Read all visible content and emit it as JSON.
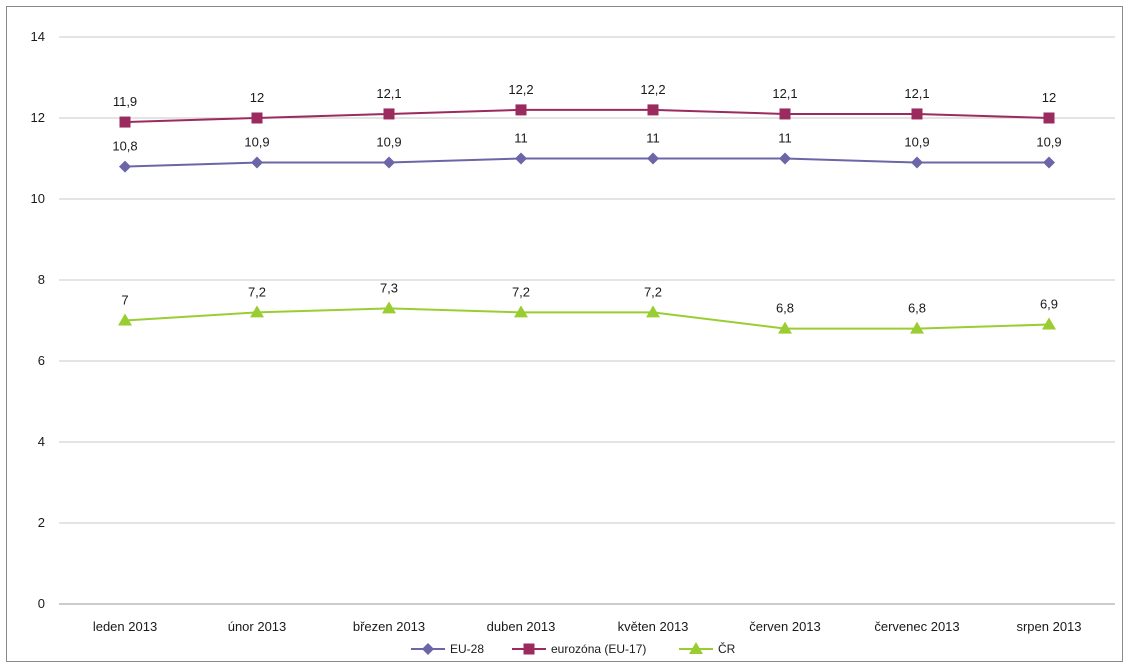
{
  "chart_data": {
    "type": "line",
    "categories": [
      "leden 2013",
      "únor 2013",
      "březen 2013",
      "duben 2013",
      "květen 2013",
      "červen 2013",
      "červenec 2013",
      "srpen 2013"
    ],
    "series": [
      {
        "name": "EU-28",
        "marker": "diamond",
        "color": "#6b66a8",
        "values": [
          10.8,
          10.9,
          10.9,
          11,
          11,
          11,
          10.9,
          10.9
        ],
        "labels": [
          "10,8",
          "10,9",
          "10,9",
          "11",
          "11",
          "11",
          "10,9",
          "10,9"
        ]
      },
      {
        "name": "eurozóna (EU-17)",
        "marker": "square",
        "color": "#9b2a5f",
        "values": [
          11.9,
          12,
          12.1,
          12.2,
          12.2,
          12.1,
          12.1,
          12
        ],
        "labels": [
          "11,9",
          "12",
          "12,1",
          "12,2",
          "12,2",
          "12,1",
          "12,1",
          "12"
        ]
      },
      {
        "name": "ČR",
        "marker": "triangle",
        "color": "#9acd32",
        "values": [
          7,
          7.2,
          7.3,
          7.2,
          7.2,
          6.8,
          6.8,
          6.9
        ],
        "labels": [
          "7",
          "7,2",
          "7,3",
          "7,2",
          "7,2",
          "6,8",
          "6,8",
          "6,9"
        ]
      }
    ],
    "yticks": [
      "0",
      "2",
      "4",
      "6",
      "8",
      "10",
      "12",
      "14"
    ],
    "ylim": [
      0,
      14
    ],
    "title": "",
    "xlabel": "",
    "ylabel": "",
    "grid": true,
    "legend_position": "bottom"
  }
}
